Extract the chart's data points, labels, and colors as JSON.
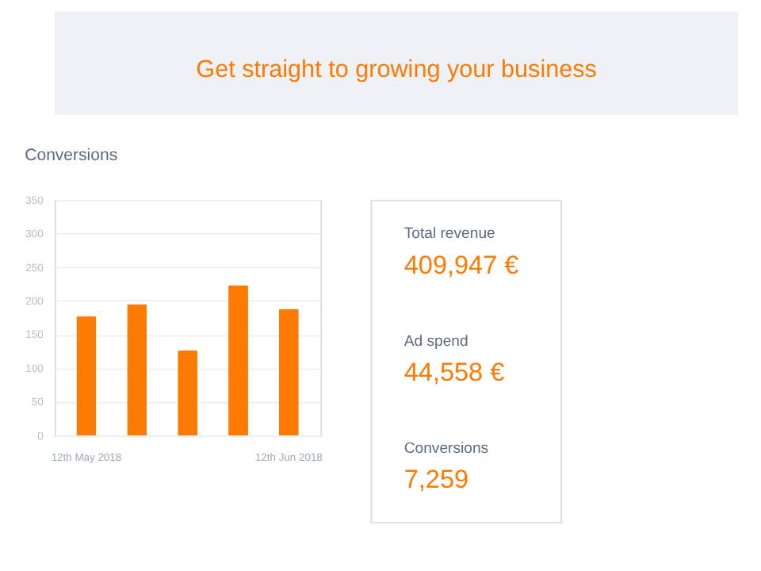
{
  "chart_data": [
    {
      "type": "bar",
      "title": "Conversions",
      "annotations": [
        "Get straight to growing your business"
      ],
      "categories": [
        "12th May 2018",
        null,
        null,
        null,
        "12th Jun 2018"
      ],
      "values": [
        177,
        195,
        126,
        223,
        188
      ],
      "color": "#ff7a00",
      "ylim": [
        0,
        350
      ],
      "yticks": [
        0,
        50,
        100,
        150,
        200,
        250,
        300,
        350
      ],
      "grid": "y"
    },
    {
      "type": "other",
      "annotations": [
        "Total revenue",
        "409,947 €",
        "Ad spend",
        "44,558 €",
        "Conversions",
        "7,259"
      ]
    }
  ]
}
